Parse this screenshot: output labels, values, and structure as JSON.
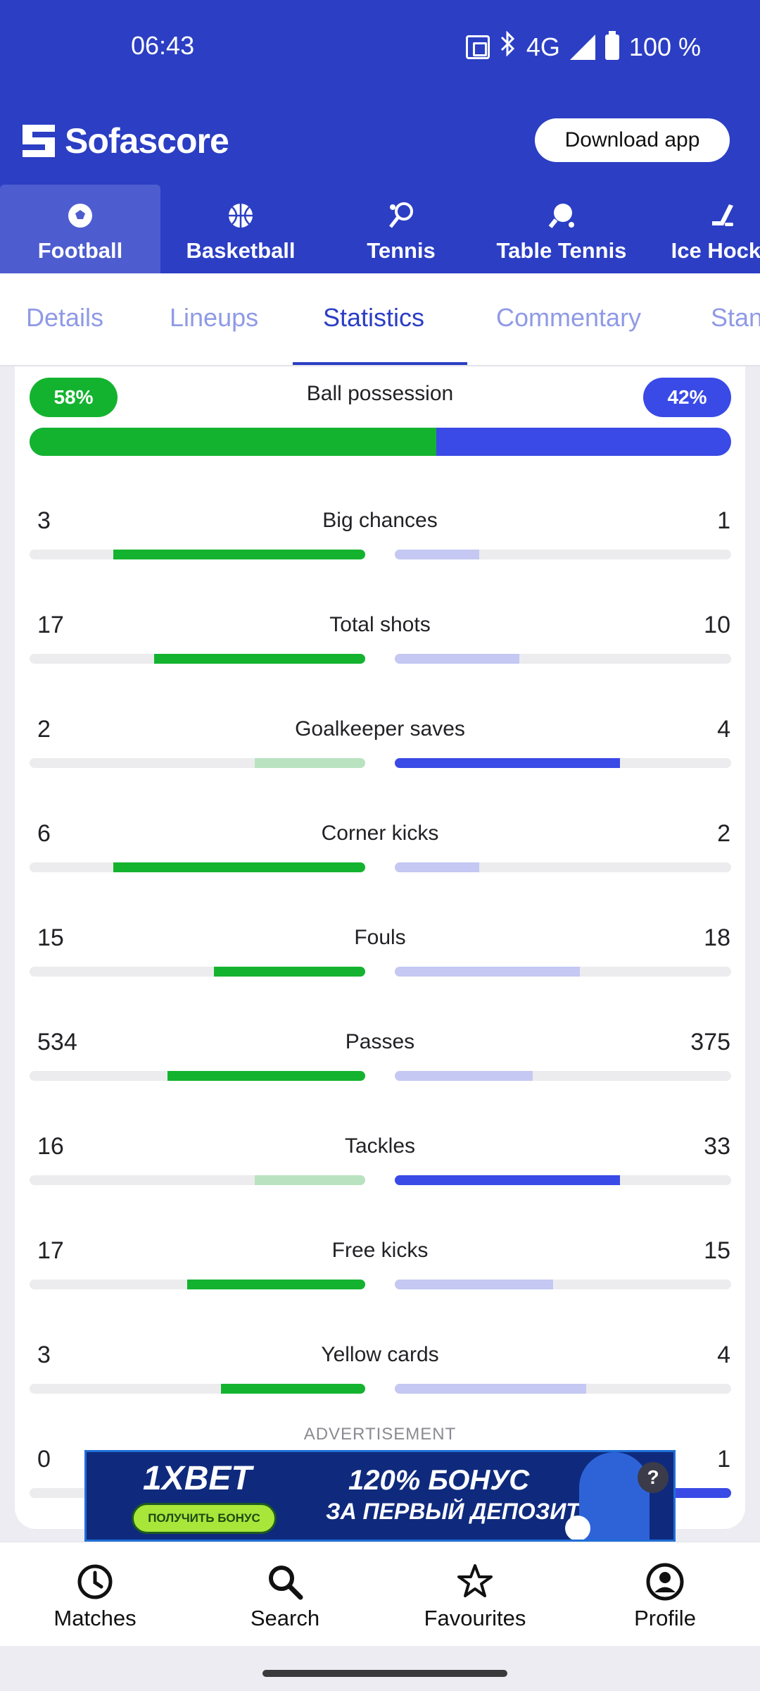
{
  "status_bar": {
    "time": "06:43",
    "network": "4G",
    "battery": "100 %"
  },
  "header": {
    "brand": "Sofascore",
    "download_label": "Download app"
  },
  "sports": [
    {
      "label": "Football",
      "icon": "football-icon",
      "active": true
    },
    {
      "label": "Basketball",
      "icon": "basketball-icon",
      "active": false
    },
    {
      "label": "Tennis",
      "icon": "tennis-icon",
      "active": false
    },
    {
      "label": "Table Tennis",
      "icon": "table-tennis-icon",
      "active": false
    },
    {
      "label": "Ice Hocke",
      "icon": "ice-hockey-icon",
      "active": false
    }
  ],
  "detail_tabs": [
    {
      "label": "Details",
      "active": false
    },
    {
      "label": "Lineups",
      "active": false
    },
    {
      "label": "Statistics",
      "active": true
    },
    {
      "label": "Commentary",
      "active": false
    },
    {
      "label": "Stan",
      "active": false
    }
  ],
  "possession": {
    "label": "Ball possession",
    "home": "58%",
    "away": "42%",
    "home_fraction": 0.58
  },
  "stats": [
    {
      "name": "Big chances",
      "home": "3",
      "away": "1",
      "home_frac": 0.75,
      "away_frac": 0.25,
      "leader": "home"
    },
    {
      "name": "Total shots",
      "home": "17",
      "away": "10",
      "home_frac": 0.63,
      "away_frac": 0.37,
      "leader": "home"
    },
    {
      "name": "Goalkeeper saves",
      "home": "2",
      "away": "4",
      "home_frac": 0.33,
      "away_frac": 0.67,
      "leader": "away"
    },
    {
      "name": "Corner kicks",
      "home": "6",
      "away": "2",
      "home_frac": 0.75,
      "away_frac": 0.25,
      "leader": "home"
    },
    {
      "name": "Fouls",
      "home": "15",
      "away": "18",
      "home_frac": 0.45,
      "away_frac": 0.55,
      "leader": "home"
    },
    {
      "name": "Passes",
      "home": "534",
      "away": "375",
      "home_frac": 0.59,
      "away_frac": 0.41,
      "leader": "home"
    },
    {
      "name": "Tackles",
      "home": "16",
      "away": "33",
      "home_frac": 0.33,
      "away_frac": 0.67,
      "leader": "away"
    },
    {
      "name": "Free kicks",
      "home": "17",
      "away": "15",
      "home_frac": 0.53,
      "away_frac": 0.47,
      "leader": "home"
    },
    {
      "name": "Yellow cards",
      "home": "3",
      "away": "4",
      "home_frac": 0.43,
      "away_frac": 0.57,
      "leader": "home"
    },
    {
      "name": "",
      "home": "0",
      "away": "1",
      "home_frac": 0.0,
      "away_frac": 1.0,
      "leader": "away"
    }
  ],
  "colors": {
    "brand": "#2b3ec4",
    "home_strong": "#14b32f",
    "home_weak": "#b9e3c0",
    "away_strong": "#3a4ae6",
    "away_weak": "#c4c8f2",
    "track": "#ececee"
  },
  "advertisement": {
    "label": "ADVERTISEMENT",
    "brand": "1XBET",
    "cta": "ПОЛУЧИТЬ БОНУС",
    "headline": "120% БОНУС",
    "subline": "ЗА ПЕРВЫЙ ДЕПОЗИТ",
    "help": "?"
  },
  "bottom_nav": [
    {
      "label": "Matches",
      "icon": "clock-icon"
    },
    {
      "label": "Search",
      "icon": "search-icon"
    },
    {
      "label": "Favourites",
      "icon": "star-icon"
    },
    {
      "label": "Profile",
      "icon": "profile-icon"
    }
  ]
}
